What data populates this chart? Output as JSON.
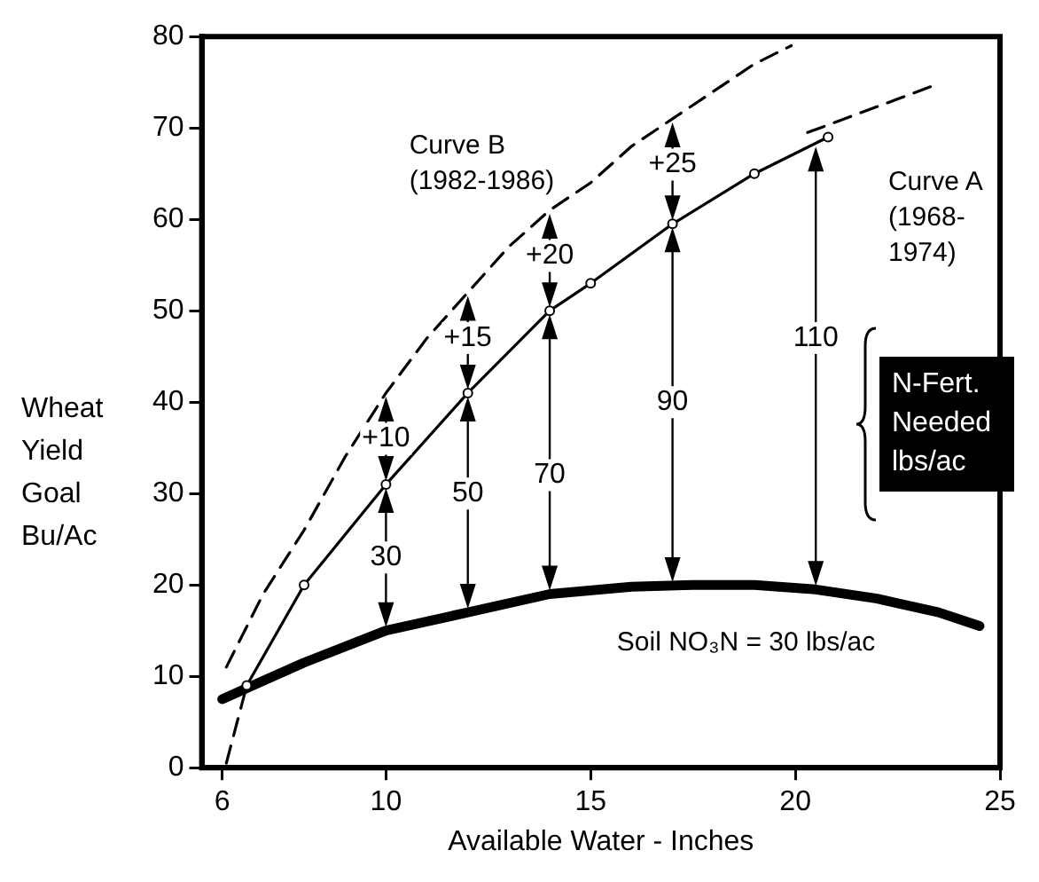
{
  "chart_data": {
    "type": "line",
    "xlabel": "Available Water - Inches",
    "ylabel": "Wheat Yield Goal Bu/Ac",
    "xlim": [
      5.5,
      25
    ],
    "xticks": [
      6,
      10,
      15,
      20,
      25
    ],
    "ylim": [
      0,
      80
    ],
    "yticks": [
      0,
      10,
      20,
      30,
      40,
      50,
      60,
      70,
      80
    ],
    "grid": false,
    "legend": false,
    "series": [
      {
        "name": "Curve B (1982-1986)",
        "color": "#000000",
        "line_style": "dashed",
        "marker": "none",
        "x": [
          6.1,
          7,
          8,
          9,
          10,
          11,
          12,
          13,
          14,
          15,
          16,
          17,
          18,
          19,
          19.9
        ],
        "values": [
          11,
          19,
          26,
          34,
          41,
          47,
          52,
          57,
          61,
          64,
          68,
          71,
          74,
          77,
          79
        ]
      },
      {
        "name": "Curve A (1968-1974)",
        "color": "#000000",
        "line_style": "solid",
        "marker": "circle",
        "x": [
          6.6,
          8,
          10,
          12,
          14,
          15,
          17,
          19,
          20.8
        ],
        "values": [
          9,
          20,
          31,
          41,
          50,
          53,
          59.5,
          65,
          69
        ]
      },
      {
        "name": "Soil NO₃N = 30 lbs/ac",
        "color": "#000000",
        "line_style": "solid",
        "marker": "none",
        "x": [
          6,
          7,
          8,
          10,
          12,
          14,
          16,
          17.5,
          19,
          20.5,
          22,
          23.5,
          24.5
        ],
        "values": [
          7.5,
          9.5,
          11.5,
          15,
          17,
          19,
          19.8,
          20,
          20,
          19.5,
          18.5,
          17,
          15.5
        ]
      },
      {
        "color": "#000000",
        "line_style": "dashed",
        "marker": "none",
        "x": [
          6.1,
          6.6,
          13,
          20.3,
          23.3
        ],
        "values": [
          0.5,
          9,
          null,
          69.5,
          74.5
        ]
      }
    ],
    "annotations": [
      {
        "text": "+10",
        "x": 10,
        "y": 36
      },
      {
        "text": "30",
        "x": 10,
        "y": 23
      },
      {
        "text": "+15",
        "x": 12,
        "y": 47
      },
      {
        "text": "50",
        "x": 12,
        "y": 30
      },
      {
        "text": "+20",
        "x": 14,
        "y": 56
      },
      {
        "text": "70",
        "x": 14,
        "y": 32
      },
      {
        "text": "+25",
        "x": 17,
        "y": 66
      },
      {
        "text": "90",
        "x": 17,
        "y": 40
      },
      {
        "text": "110",
        "x": 20.5,
        "y": 47
      },
      "N-Fert. Needed lbs/ac"
    ]
  }
}
